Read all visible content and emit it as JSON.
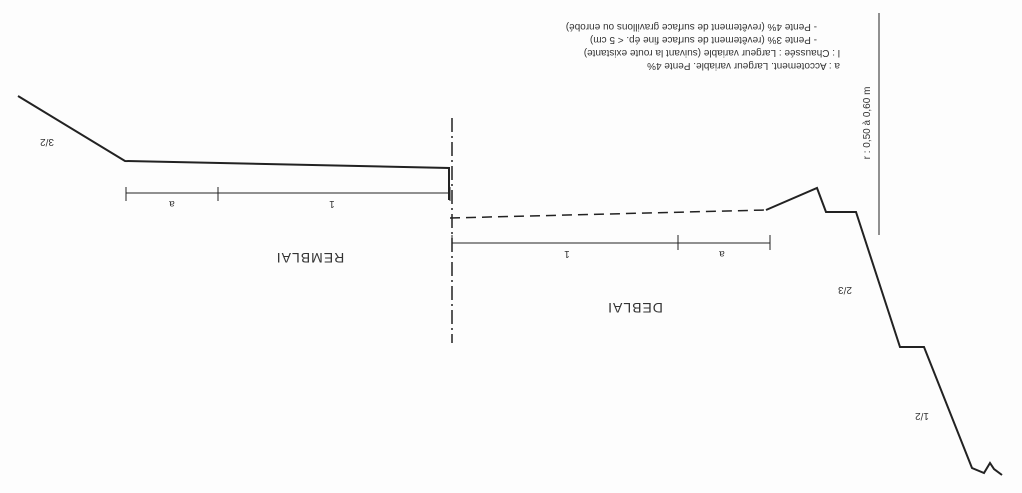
{
  "diagram": {
    "orientation": "rotated-180",
    "sections": {
      "remblai": "REMBLAI",
      "deblai": "DEBLAI"
    },
    "slopes": {
      "remblai_slope": "3/2",
      "deblai_upper_slope": "2/3",
      "deblai_lower_slope": "1/2"
    },
    "dimensions": {
      "remblai_shoulder": "a",
      "remblai_lane": "1",
      "deblai_lane": "1",
      "deblai_shoulder": "a",
      "ditch_depth": "r : 0,50 à 0,60 m"
    },
    "notes": [
      "a : Accotement. Largeur variable. Pente 4%",
      "l : Chaussée : Largeur variable (suivant la route existante)",
      "- Pente 3% (revêtement de surface fine ép. < 5 cm)",
      "- Pente 4% (revêtement de surface gravillons ou enrobé)"
    ]
  }
}
